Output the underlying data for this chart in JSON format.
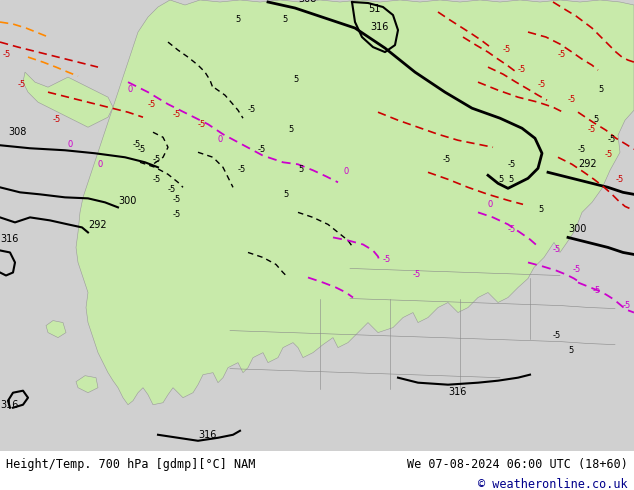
{
  "title_left": "Height/Temp. 700 hPa [gdmp][°C] NAM",
  "title_right": "We 07-08-2024 06:00 UTC (18+60)",
  "copyright": "© weatheronline.co.uk",
  "bg_color": "#ffffff",
  "map_bg": "#d0d0d0",
  "land_color": "#c8eaaa",
  "footer_text_color": "#000000",
  "copyright_color": "#00008B",
  "fig_width": 6.34,
  "fig_height": 4.9,
  "dpi": 100
}
